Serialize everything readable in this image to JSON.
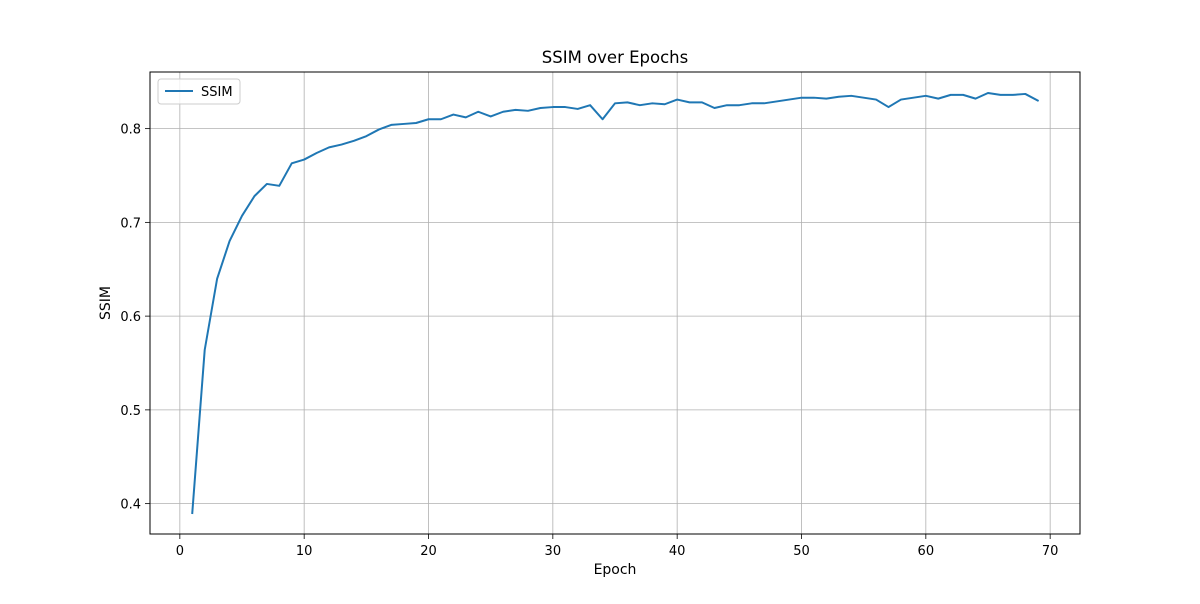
{
  "chart_data": {
    "type": "line",
    "title": "SSIM over Epochs",
    "xlabel": "Epoch",
    "ylabel": "SSIM",
    "xlim": [
      -2.4,
      72.4
    ],
    "ylim": [
      0.3676,
      0.8604
    ],
    "xticks": [
      0,
      10,
      20,
      30,
      40,
      50,
      60,
      70
    ],
    "yticks": [
      0.4,
      0.5,
      0.6,
      0.7,
      0.8
    ],
    "xtick_labels": [
      "0",
      "10",
      "20",
      "30",
      "40",
      "50",
      "60",
      "70"
    ],
    "ytick_labels": [
      "0.4",
      "0.5",
      "0.6",
      "0.7",
      "0.8"
    ],
    "grid": true,
    "legend": {
      "position": "upper-left",
      "entries": [
        "SSIM"
      ]
    },
    "series": [
      {
        "name": "SSIM",
        "color": "#1f77b4",
        "x": [
          1,
          2,
          3,
          4,
          5,
          6,
          7,
          8,
          9,
          10,
          11,
          12,
          13,
          14,
          15,
          16,
          17,
          18,
          19,
          20,
          21,
          22,
          23,
          24,
          25,
          26,
          27,
          28,
          29,
          30,
          31,
          32,
          33,
          34,
          35,
          36,
          37,
          38,
          39,
          40,
          41,
          42,
          43,
          44,
          45,
          46,
          47,
          48,
          49,
          50,
          51,
          52,
          53,
          54,
          55,
          56,
          57,
          58,
          59,
          60,
          61,
          62,
          63,
          64,
          65,
          66,
          67,
          68,
          69
        ],
        "values": [
          0.39,
          0.564,
          0.64,
          0.68,
          0.707,
          0.728,
          0.741,
          0.739,
          0.763,
          0.767,
          0.774,
          0.78,
          0.783,
          0.787,
          0.792,
          0.799,
          0.804,
          0.805,
          0.806,
          0.81,
          0.81,
          0.815,
          0.812,
          0.818,
          0.813,
          0.818,
          0.82,
          0.819,
          0.822,
          0.823,
          0.823,
          0.821,
          0.825,
          0.81,
          0.827,
          0.828,
          0.825,
          0.827,
          0.826,
          0.831,
          0.828,
          0.828,
          0.822,
          0.825,
          0.825,
          0.827,
          0.827,
          0.829,
          0.831,
          0.833,
          0.833,
          0.832,
          0.834,
          0.835,
          0.833,
          0.831,
          0.823,
          0.831,
          0.833,
          0.835,
          0.832,
          0.836,
          0.836,
          0.832,
          0.838,
          0.836,
          0.836,
          0.837,
          0.83
        ]
      }
    ]
  }
}
